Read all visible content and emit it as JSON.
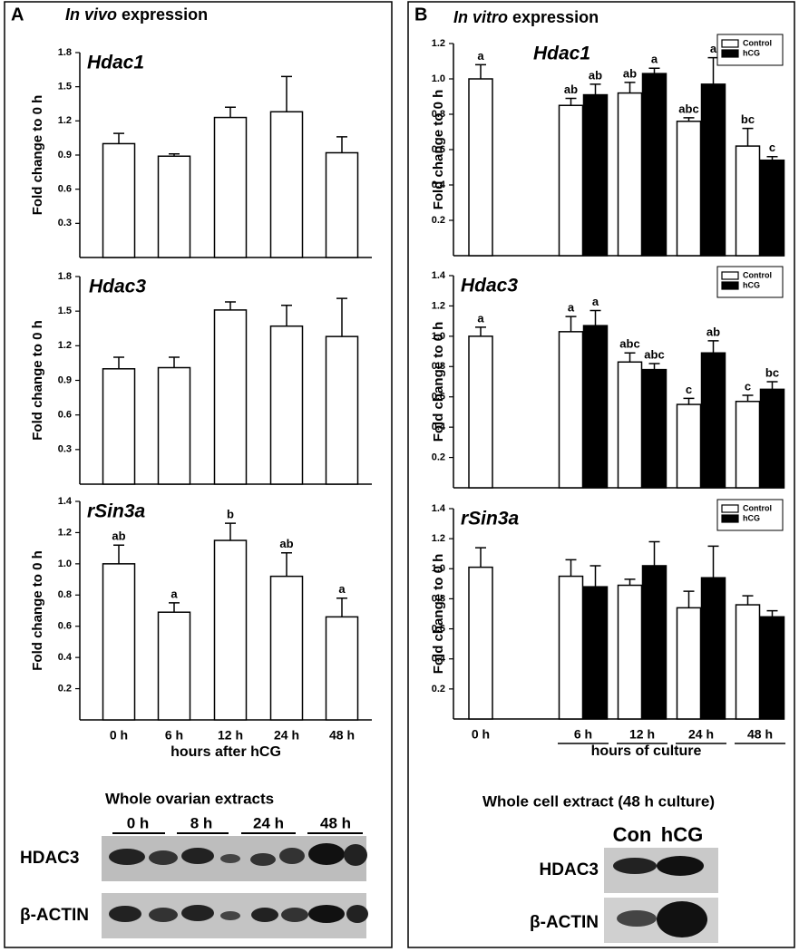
{
  "panels": [
    {
      "label": "A",
      "heading": [
        "In vivo",
        "expression"
      ],
      "blot": {
        "title": "Whole ovarian extracts",
        "lanes": [
          "0 h",
          "8 h",
          "24 h",
          "48 h"
        ],
        "rows": [
          "HDAC3",
          "β-ACTIN"
        ]
      }
    },
    {
      "label": "B",
      "heading": [
        "In vitro",
        "expression"
      ],
      "blot": {
        "title": "Whole cell extract (48 h culture)",
        "lanes": [
          "Con",
          "hCG"
        ],
        "rows": [
          "HDAC3",
          "β-ACTIN"
        ]
      }
    }
  ],
  "chart_data": [
    {
      "type": "bar",
      "title": "Hdac1",
      "ylabel": "Fold change to 0 h",
      "values": [
        1.0,
        0.89,
        1.23,
        1.28,
        0.92
      ],
      "errors": [
        0.09,
        0.02,
        0.09,
        0.31,
        0.14
      ],
      "color": "#ffffff",
      "ylim": [
        0,
        1.8
      ],
      "yticks": [
        0.3,
        0.6,
        0.9,
        1.2,
        1.5,
        1.8
      ]
    },
    {
      "type": "bar",
      "title": "Hdac3",
      "ylabel": "Fold change to 0 h",
      "values": [
        1.0,
        1.01,
        1.51,
        1.37,
        1.28
      ],
      "errors": [
        0.1,
        0.09,
        0.07,
        0.18,
        0.33
      ],
      "color": "#ffffff",
      "ylim": [
        0,
        1.8
      ],
      "yticks": [
        0.3,
        0.6,
        0.9,
        1.2,
        1.5,
        1.8
      ]
    },
    {
      "type": "bar",
      "title": "rSin3a",
      "ylabel": "Fold change to 0 h",
      "xlabel": "hours after hCG",
      "categories": [
        "0 h",
        "6 h",
        "12 h",
        "24 h",
        "48 h"
      ],
      "values": [
        1.0,
        0.69,
        1.15,
        0.92,
        0.66
      ],
      "errors": [
        0.12,
        0.06,
        0.11,
        0.15,
        0.12
      ],
      "letters": [
        "ab",
        "a",
        "b",
        "ab",
        "a"
      ],
      "color": "#ffffff",
      "ylim": [
        0,
        1.4
      ],
      "yticks": [
        0.2,
        0.4,
        0.6,
        0.8,
        {
          "value": 1,
          "label": "1.0"
        },
        1.2,
        1.4
      ]
    },
    {
      "type": "bar",
      "title": "Hdac1",
      "ylabel": "Fold change to 0 h",
      "legend": "upper right",
      "series": [
        {
          "name": "Control",
          "color": "#ffffff",
          "values": [
            1.0,
            0.85,
            0.92,
            0.76,
            0.62
          ],
          "errors": [
            0.08,
            0.04,
            0.06,
            0.02,
            0.1
          ],
          "letters": [
            "a",
            "ab",
            "ab",
            "abc",
            "bc"
          ]
        },
        {
          "name": "hCG",
          "color": "#000000",
          "values": [
            null,
            0.91,
            1.03,
            0.97,
            0.54
          ],
          "errors": [
            null,
            0.06,
            0.03,
            0.15,
            0.02
          ],
          "letters": [
            null,
            "ab",
            "a",
            "a",
            "c"
          ]
        }
      ],
      "ylim": [
        0,
        1.2
      ],
      "yticks": [
        0.2,
        0.4,
        0.6,
        0.8,
        {
          "value": 1,
          "label": "1.0"
        },
        1.2
      ]
    },
    {
      "type": "bar",
      "title": "Hdac3",
      "ylabel": "Fold change to 0 h",
      "legend": "upper right",
      "series": [
        {
          "name": "Control",
          "color": "#ffffff",
          "values": [
            1.0,
            1.03,
            0.83,
            0.55,
            0.57
          ],
          "errors": [
            0.06,
            0.1,
            0.06,
            0.04,
            0.04
          ],
          "letters": [
            "a",
            "a",
            "abc",
            "c",
            "c"
          ]
        },
        {
          "name": "hCG",
          "color": "#000000",
          "values": [
            null,
            1.07,
            0.78,
            0.89,
            0.65
          ],
          "errors": [
            null,
            0.1,
            0.04,
            0.08,
            0.05
          ],
          "letters": [
            null,
            "a",
            "abc",
            "ab",
            "bc"
          ]
        }
      ],
      "ylim": [
        0,
        1.4
      ],
      "yticks": [
        0.2,
        0.4,
        0.6,
        0.8,
        {
          "value": 1,
          "label": "1.0"
        },
        1.2,
        1.4
      ]
    },
    {
      "type": "bar",
      "title": "rSin3a",
      "ylabel": "Fold change to 0 h",
      "xlabel": "hours of culture",
      "legend": "upper right",
      "categories": [
        "0 h",
        "6 h",
        "12 h",
        "24 h",
        "48 h"
      ],
      "series": [
        {
          "name": "Control",
          "color": "#ffffff",
          "values": [
            1.01,
            0.95,
            0.89,
            0.74,
            0.76
          ],
          "errors": [
            0.13,
            0.11,
            0.04,
            0.11,
            0.06
          ]
        },
        {
          "name": "hCG",
          "color": "#000000",
          "values": [
            null,
            0.88,
            1.02,
            0.94,
            0.68
          ],
          "errors": [
            null,
            0.14,
            0.16,
            0.21,
            0.04
          ]
        }
      ],
      "ylim": [
        0,
        1.4
      ],
      "yticks": [
        0.2,
        0.4,
        0.6,
        0.8,
        {
          "value": 1,
          "label": "1.0"
        },
        1.2,
        1.4
      ]
    }
  ]
}
